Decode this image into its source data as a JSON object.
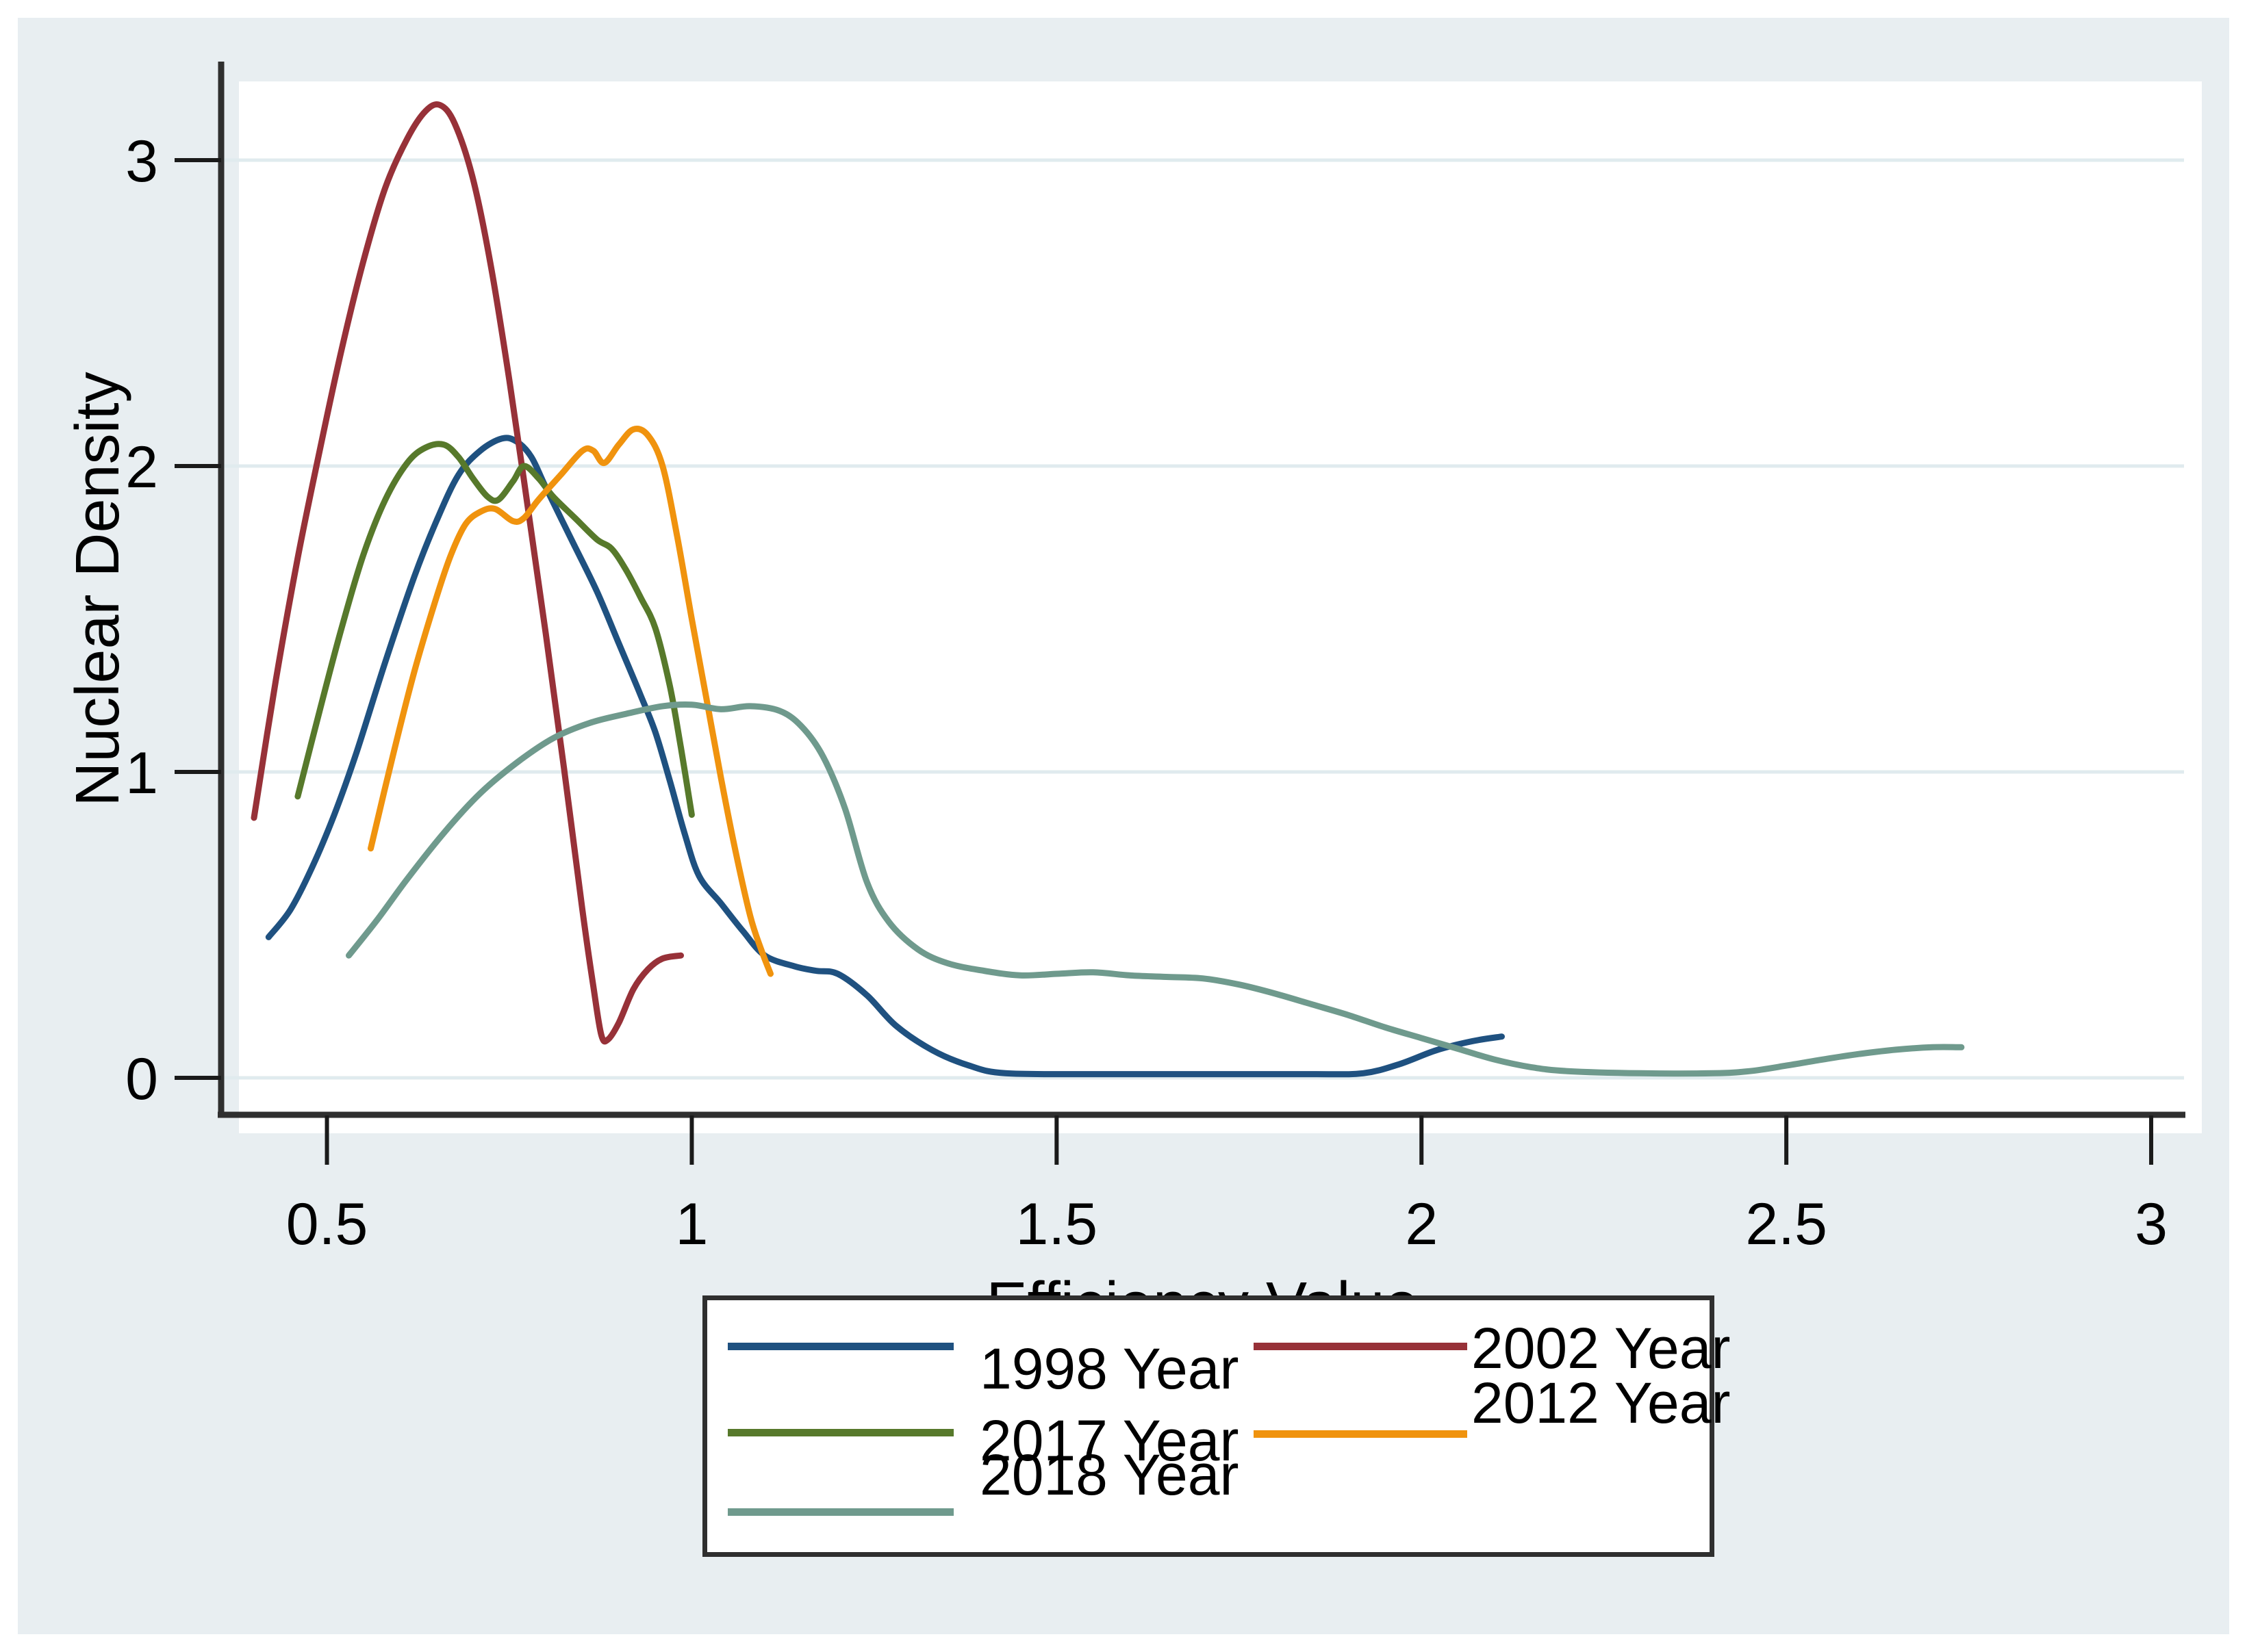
{
  "chart_data": {
    "type": "line",
    "title": "",
    "xlabel": "Efficiency Value",
    "ylabel": "Nuclear Density",
    "xlim": [
      0.355,
      3.045
    ],
    "ylim": [
      0,
      3.315
    ],
    "grid": "horizontal",
    "grid_color": "#e0ebee",
    "axis_color": "#2f2f2f",
    "tick_color": "#1a1a1a",
    "background_outside": "#e8eef1",
    "background_plot": "#ffffff",
    "legend_position": "bottom-center",
    "xticks": {
      "values": [
        0.5,
        1,
        1.5,
        2,
        2.5,
        3
      ],
      "labels": [
        "0.5",
        "1",
        "1.5",
        "2",
        "2.5",
        "3"
      ]
    },
    "yticks": {
      "values": [
        0,
        1,
        2,
        3
      ],
      "labels": [
        "0",
        "1",
        "2",
        "3"
      ]
    },
    "series": [
      {
        "name": "1998 Year",
        "color": "#1f5180",
        "points": [
          [
            0.42,
            0.46
          ],
          [
            0.45,
            0.55
          ],
          [
            0.48,
            0.69
          ],
          [
            0.51,
            0.86
          ],
          [
            0.54,
            1.06
          ],
          [
            0.58,
            1.36
          ],
          [
            0.62,
            1.64
          ],
          [
            0.65,
            1.82
          ],
          [
            0.68,
            1.97
          ],
          [
            0.71,
            2.05
          ],
          [
            0.74,
            2.09
          ],
          [
            0.76,
            2.08
          ],
          [
            0.78,
            2.03
          ],
          [
            0.8,
            1.93
          ],
          [
            0.835,
            1.76
          ],
          [
            0.87,
            1.59
          ],
          [
            0.9,
            1.42
          ],
          [
            0.93,
            1.25
          ],
          [
            0.95,
            1.13
          ],
          [
            0.97,
            0.97
          ],
          [
            0.99,
            0.8
          ],
          [
            1.01,
            0.66
          ],
          [
            1.04,
            0.57
          ],
          [
            1.07,
            0.48
          ],
          [
            1.1,
            0.4
          ],
          [
            1.14,
            0.365
          ],
          [
            1.17,
            0.35
          ],
          [
            1.2,
            0.34
          ],
          [
            1.24,
            0.27
          ],
          [
            1.28,
            0.17
          ],
          [
            1.33,
            0.09
          ],
          [
            1.38,
            0.04
          ],
          [
            1.43,
            0.015
          ],
          [
            1.55,
            0.012
          ],
          [
            1.7,
            0.012
          ],
          [
            1.85,
            0.012
          ],
          [
            1.92,
            0.015
          ],
          [
            1.97,
            0.045
          ],
          [
            2.02,
            0.09
          ],
          [
            2.07,
            0.12
          ],
          [
            2.11,
            0.135
          ]
        ]
      },
      {
        "name": "2002 Year",
        "color": "#973138",
        "points": [
          [
            0.4,
            0.85
          ],
          [
            0.43,
            1.3
          ],
          [
            0.46,
            1.7
          ],
          [
            0.49,
            2.05
          ],
          [
            0.52,
            2.38
          ],
          [
            0.55,
            2.67
          ],
          [
            0.58,
            2.91
          ],
          [
            0.61,
            3.07
          ],
          [
            0.635,
            3.16
          ],
          [
            0.655,
            3.18
          ],
          [
            0.675,
            3.12
          ],
          [
            0.7,
            2.94
          ],
          [
            0.725,
            2.65
          ],
          [
            0.75,
            2.28
          ],
          [
            0.775,
            1.87
          ],
          [
            0.8,
            1.45
          ],
          [
            0.825,
            1.01
          ],
          [
            0.85,
            0.55
          ],
          [
            0.865,
            0.3
          ],
          [
            0.876,
            0.14
          ],
          [
            0.885,
            0.125
          ],
          [
            0.9,
            0.18
          ],
          [
            0.92,
            0.29
          ],
          [
            0.94,
            0.355
          ],
          [
            0.96,
            0.39
          ],
          [
            0.985,
            0.4
          ]
        ]
      },
      {
        "name": "2017 Year",
        "color": "#57792b",
        "points": [
          [
            0.46,
            0.92
          ],
          [
            0.49,
            1.2
          ],
          [
            0.52,
            1.47
          ],
          [
            0.55,
            1.71
          ],
          [
            0.58,
            1.89
          ],
          [
            0.61,
            2.01
          ],
          [
            0.635,
            2.06
          ],
          [
            0.66,
            2.07
          ],
          [
            0.68,
            2.03
          ],
          [
            0.7,
            1.96
          ],
          [
            0.72,
            1.9
          ],
          [
            0.735,
            1.89
          ],
          [
            0.755,
            1.95
          ],
          [
            0.77,
            2.0
          ],
          [
            0.79,
            1.96
          ],
          [
            0.81,
            1.9
          ],
          [
            0.84,
            1.83
          ],
          [
            0.87,
            1.76
          ],
          [
            0.89,
            1.73
          ],
          [
            0.91,
            1.66
          ],
          [
            0.93,
            1.57
          ],
          [
            0.95,
            1.47
          ],
          [
            0.97,
            1.28
          ],
          [
            0.985,
            1.08
          ],
          [
            1.0,
            0.86
          ]
        ]
      },
      {
        "name": "2012 Year",
        "color": "#f0930e",
        "points": [
          [
            0.56,
            0.75
          ],
          [
            0.59,
            1.05
          ],
          [
            0.62,
            1.33
          ],
          [
            0.65,
            1.57
          ],
          [
            0.67,
            1.71
          ],
          [
            0.69,
            1.81
          ],
          [
            0.71,
            1.85
          ],
          [
            0.73,
            1.86
          ],
          [
            0.755,
            1.82
          ],
          [
            0.77,
            1.83
          ],
          [
            0.79,
            1.89
          ],
          [
            0.82,
            1.97
          ],
          [
            0.85,
            2.05
          ],
          [
            0.865,
            2.05
          ],
          [
            0.88,
            2.01
          ],
          [
            0.9,
            2.07
          ],
          [
            0.92,
            2.12
          ],
          [
            0.94,
            2.1
          ],
          [
            0.96,
            2.0
          ],
          [
            0.98,
            1.77
          ],
          [
            1.0,
            1.5
          ],
          [
            1.02,
            1.24
          ],
          [
            1.04,
            0.98
          ],
          [
            1.06,
            0.74
          ],
          [
            1.08,
            0.53
          ],
          [
            1.095,
            0.42
          ],
          [
            1.108,
            0.34
          ]
        ]
      },
      {
        "name": "2018 Year",
        "color": "#6f9a8d",
        "points": [
          [
            0.53,
            0.4
          ],
          [
            0.57,
            0.52
          ],
          [
            0.61,
            0.65
          ],
          [
            0.66,
            0.8
          ],
          [
            0.71,
            0.93
          ],
          [
            0.76,
            1.03
          ],
          [
            0.81,
            1.11
          ],
          [
            0.86,
            1.16
          ],
          [
            0.91,
            1.19
          ],
          [
            0.96,
            1.215
          ],
          [
            1.0,
            1.22
          ],
          [
            1.04,
            1.205
          ],
          [
            1.08,
            1.215
          ],
          [
            1.12,
            1.2
          ],
          [
            1.15,
            1.15
          ],
          [
            1.18,
            1.05
          ],
          [
            1.21,
            0.88
          ],
          [
            1.24,
            0.64
          ],
          [
            1.27,
            0.51
          ],
          [
            1.31,
            0.42
          ],
          [
            1.35,
            0.375
          ],
          [
            1.4,
            0.35
          ],
          [
            1.45,
            0.335
          ],
          [
            1.5,
            0.34
          ],
          [
            1.55,
            0.345
          ],
          [
            1.6,
            0.335
          ],
          [
            1.65,
            0.33
          ],
          [
            1.7,
            0.325
          ],
          [
            1.75,
            0.305
          ],
          [
            1.8,
            0.275
          ],
          [
            1.85,
            0.24
          ],
          [
            1.9,
            0.205
          ],
          [
            1.95,
            0.165
          ],
          [
            2.0,
            0.13
          ],
          [
            2.05,
            0.095
          ],
          [
            2.1,
            0.06
          ],
          [
            2.15,
            0.035
          ],
          [
            2.2,
            0.022
          ],
          [
            2.3,
            0.015
          ],
          [
            2.4,
            0.015
          ],
          [
            2.45,
            0.022
          ],
          [
            2.5,
            0.04
          ],
          [
            2.55,
            0.06
          ],
          [
            2.6,
            0.078
          ],
          [
            2.65,
            0.092
          ],
          [
            2.7,
            0.1
          ],
          [
            2.74,
            0.1
          ]
        ]
      }
    ]
  },
  "legend": {
    "items": [
      {
        "label": "1998 Year"
      },
      {
        "label": "2002 Year"
      },
      {
        "label": "2017 Year"
      },
      {
        "label": "2012 Year"
      },
      {
        "label": "2018 Year"
      }
    ]
  }
}
